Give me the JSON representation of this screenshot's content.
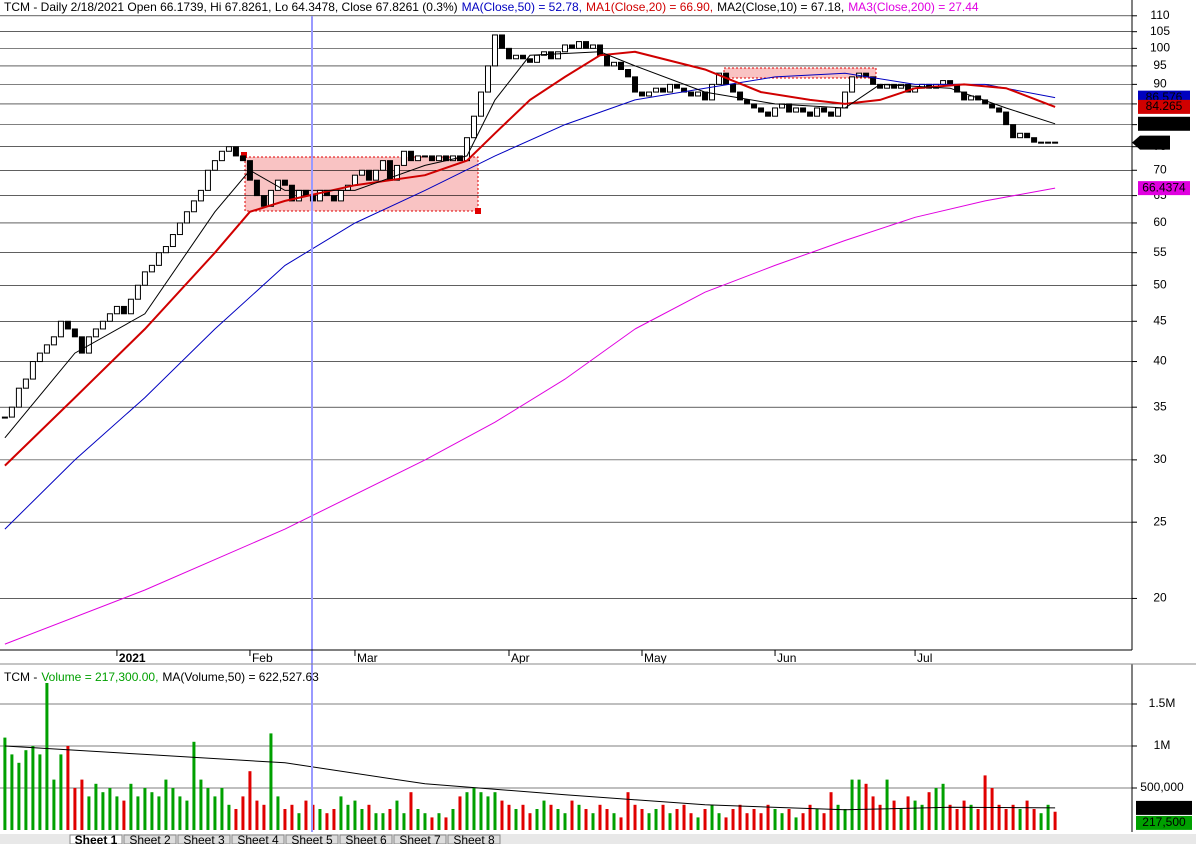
{
  "chart_data": [
    {
      "type": "candlestick",
      "title": "TCM - Daily 2/18/2021 Open 66.1739, Hi 67.8261, Lo 64.3478, Close 67.8261 (0.3%)",
      "close": [
        34,
        35,
        37,
        38,
        40,
        41,
        42,
        43,
        45,
        44,
        43,
        41,
        43,
        44,
        45,
        46,
        47,
        46,
        48,
        50,
        52,
        53,
        55,
        56,
        58,
        60,
        62,
        64,
        66,
        70,
        72,
        74,
        75,
        73,
        72,
        68,
        65,
        63,
        66,
        68,
        67,
        64,
        66,
        65,
        64,
        66,
        65,
        64,
        66,
        67,
        69,
        70,
        68,
        70,
        72,
        68,
        71,
        74,
        72,
        73,
        73,
        72,
        73,
        72,
        73,
        72,
        77,
        82,
        88,
        95,
        104,
        100,
        97,
        98,
        97,
        96,
        98,
        99,
        97,
        99,
        101,
        100,
        102,
        100,
        101,
        98,
        95,
        96,
        94,
        92,
        88,
        87,
        88,
        89,
        88,
        90,
        89,
        88,
        87,
        88,
        86,
        90,
        93,
        90,
        88,
        86,
        85,
        84,
        83,
        82,
        84,
        85,
        83,
        84,
        83,
        82,
        84,
        83,
        82,
        84,
        88,
        92,
        93,
        92,
        90,
        89,
        90,
        89,
        90,
        88,
        89,
        90,
        89,
        90,
        91,
        90,
        88,
        86,
        87,
        86,
        85,
        84,
        83,
        80,
        77,
        78,
        77,
        76,
        76,
        76,
        75.9
      ],
      "series": [
        {
          "name": "MA(Close,50) = 52.78,",
          "color": "#0000c0",
          "x": [
            0,
            10,
            20,
            30,
            40,
            50,
            60,
            70,
            80,
            90,
            100,
            110,
            120,
            130,
            140,
            150
          ],
          "values": [
            24.5,
            30,
            36,
            44,
            53,
            60,
            66,
            73,
            80,
            86,
            89,
            92,
            93,
            90,
            90,
            86.576
          ]
        },
        {
          "name": "MA1(Close,20) = 66.90,",
          "color": "#d00000",
          "x": [
            0,
            10,
            20,
            30,
            35,
            40,
            50,
            60,
            66,
            70,
            75,
            80,
            85,
            90,
            100,
            108,
            115,
            120,
            125,
            130,
            137,
            143,
            150
          ],
          "values": [
            29.5,
            36,
            44,
            55,
            62,
            64,
            67,
            69,
            72,
            78,
            86,
            92,
            98,
            99,
            94,
            88,
            86,
            85,
            86,
            89,
            90,
            89,
            84.265
          ]
        },
        {
          "name": "MA2(Close,10) = 67.18,",
          "color": "#000000",
          "x": [
            0,
            10,
            20,
            30,
            35,
            40,
            50,
            60,
            66,
            70,
            75,
            85,
            90,
            100,
            110,
            120,
            125,
            135,
            143,
            150
          ],
          "values": [
            32,
            41,
            46,
            62,
            70,
            66,
            66,
            71,
            73,
            86,
            98,
            99,
            95,
            88,
            85,
            84,
            90,
            89,
            84,
            80.2
          ]
        },
        {
          "name": "MA3(Close,200) = 27.44",
          "color": "#e000e0",
          "x": [
            0,
            20,
            40,
            60,
            70,
            80,
            90,
            100,
            110,
            120,
            130,
            140,
            150
          ],
          "values": [
            17.5,
            20.5,
            24.5,
            30,
            33.5,
            38,
            44,
            49,
            53,
            57,
            61,
            64,
            66.4374
          ]
        }
      ],
      "xlim": [
        -0.7,
        160.7
      ],
      "xticks": [
        {
          "value": 16,
          "label": "2021"
        },
        {
          "value": 35,
          "label": "Feb"
        },
        {
          "value": 50,
          "label": "Mar"
        },
        {
          "value": 72,
          "label": "Apr"
        },
        {
          "value": 91,
          "label": "May"
        },
        {
          "value": 110,
          "label": "Jun"
        },
        {
          "value": 130,
          "label": "Jul"
        }
      ],
      "ylim": [
        17.2,
        115.2
      ],
      "yticks": [
        110,
        105,
        100,
        95,
        90,
        85,
        80,
        75,
        70,
        65,
        60,
        55,
        50,
        45,
        40,
        35,
        30,
        25,
        20
      ],
      "log_scale": true,
      "grid": true
    },
    {
      "type": "bar",
      "title": "TCM -",
      "bars": {
        "name": "Volume = 217,300.00,",
        "up_color": "#00a000",
        "down_color": "#e00000",
        "last_label": "217,500",
        "values": [
          1100000,
          900000,
          800000,
          950000,
          1000000,
          900000,
          1750000,
          600000,
          900000,
          1000000,
          500000,
          600000,
          400000,
          550000,
          450000,
          500000,
          400000,
          350000,
          550000,
          400000,
          500000,
          450000,
          400000,
          600000,
          500000,
          400000,
          350000,
          1050000,
          600000,
          500000,
          400000,
          500000,
          300000,
          250000,
          400000,
          700000,
          350000,
          300000,
          1150000,
          400000,
          250000,
          300000,
          200000,
          350000,
          300000,
          250000,
          200000,
          250000,
          400000,
          300000,
          350000,
          250000,
          300000,
          200000,
          200000,
          250000,
          350000,
          200000,
          450000,
          250000,
          200000,
          150000,
          200000,
          150000,
          250000,
          400000,
          450000,
          500000,
          450000,
          400000,
          450000,
          350000,
          300000,
          250000,
          300000,
          200000,
          250000,
          350000,
          300000,
          250000,
          200000,
          350000,
          300000,
          250000,
          200000,
          300000,
          250000,
          200000,
          150000,
          450000,
          300000,
          250000,
          200000,
          250000,
          300000,
          200000,
          250000,
          300000,
          200000,
          150000,
          250000,
          300000,
          200000,
          150000,
          250000,
          300000,
          200000,
          250000,
          200000,
          300000,
          250000,
          200000,
          250000,
          150000,
          200000,
          300000,
          250000,
          200000,
          450000,
          300000,
          250000,
          600000,
          600000,
          550000,
          400000,
          300000,
          600000,
          350000,
          250000,
          400000,
          350000,
          300000,
          450000,
          500000,
          550000,
          300000,
          250000,
          350000,
          300000,
          250000,
          650000,
          500000,
          300000,
          250000,
          300000,
          250000,
          350000,
          250000,
          200000,
          300000,
          217500
        ]
      },
      "series": [
        {
          "name": "MA(Volume,50) = 622,527.63",
          "color": "#000000",
          "last_label": "263,072",
          "x": [
            0,
            20,
            40,
            60,
            80,
            100,
            120,
            135,
            150
          ],
          "values": [
            1000000,
            900000,
            800000,
            550000,
            420000,
            300000,
            240000,
            270000,
            263072
          ]
        }
      ],
      "ylim": [
        0,
        2000000
      ],
      "yticks": [
        {
          "value": 500000,
          "label": "500,000"
        },
        {
          "value": 1000000,
          "label": "1M"
        },
        {
          "value": 1500000,
          "label": "1.5M"
        }
      ]
    }
  ],
  "tabs": [
    "Sheet 1",
    "Sheet 2",
    "Sheet 3",
    "Sheet 4",
    "Sheet 5",
    "Sheet 6",
    "Sheet 7",
    "Sheet 8"
  ]
}
